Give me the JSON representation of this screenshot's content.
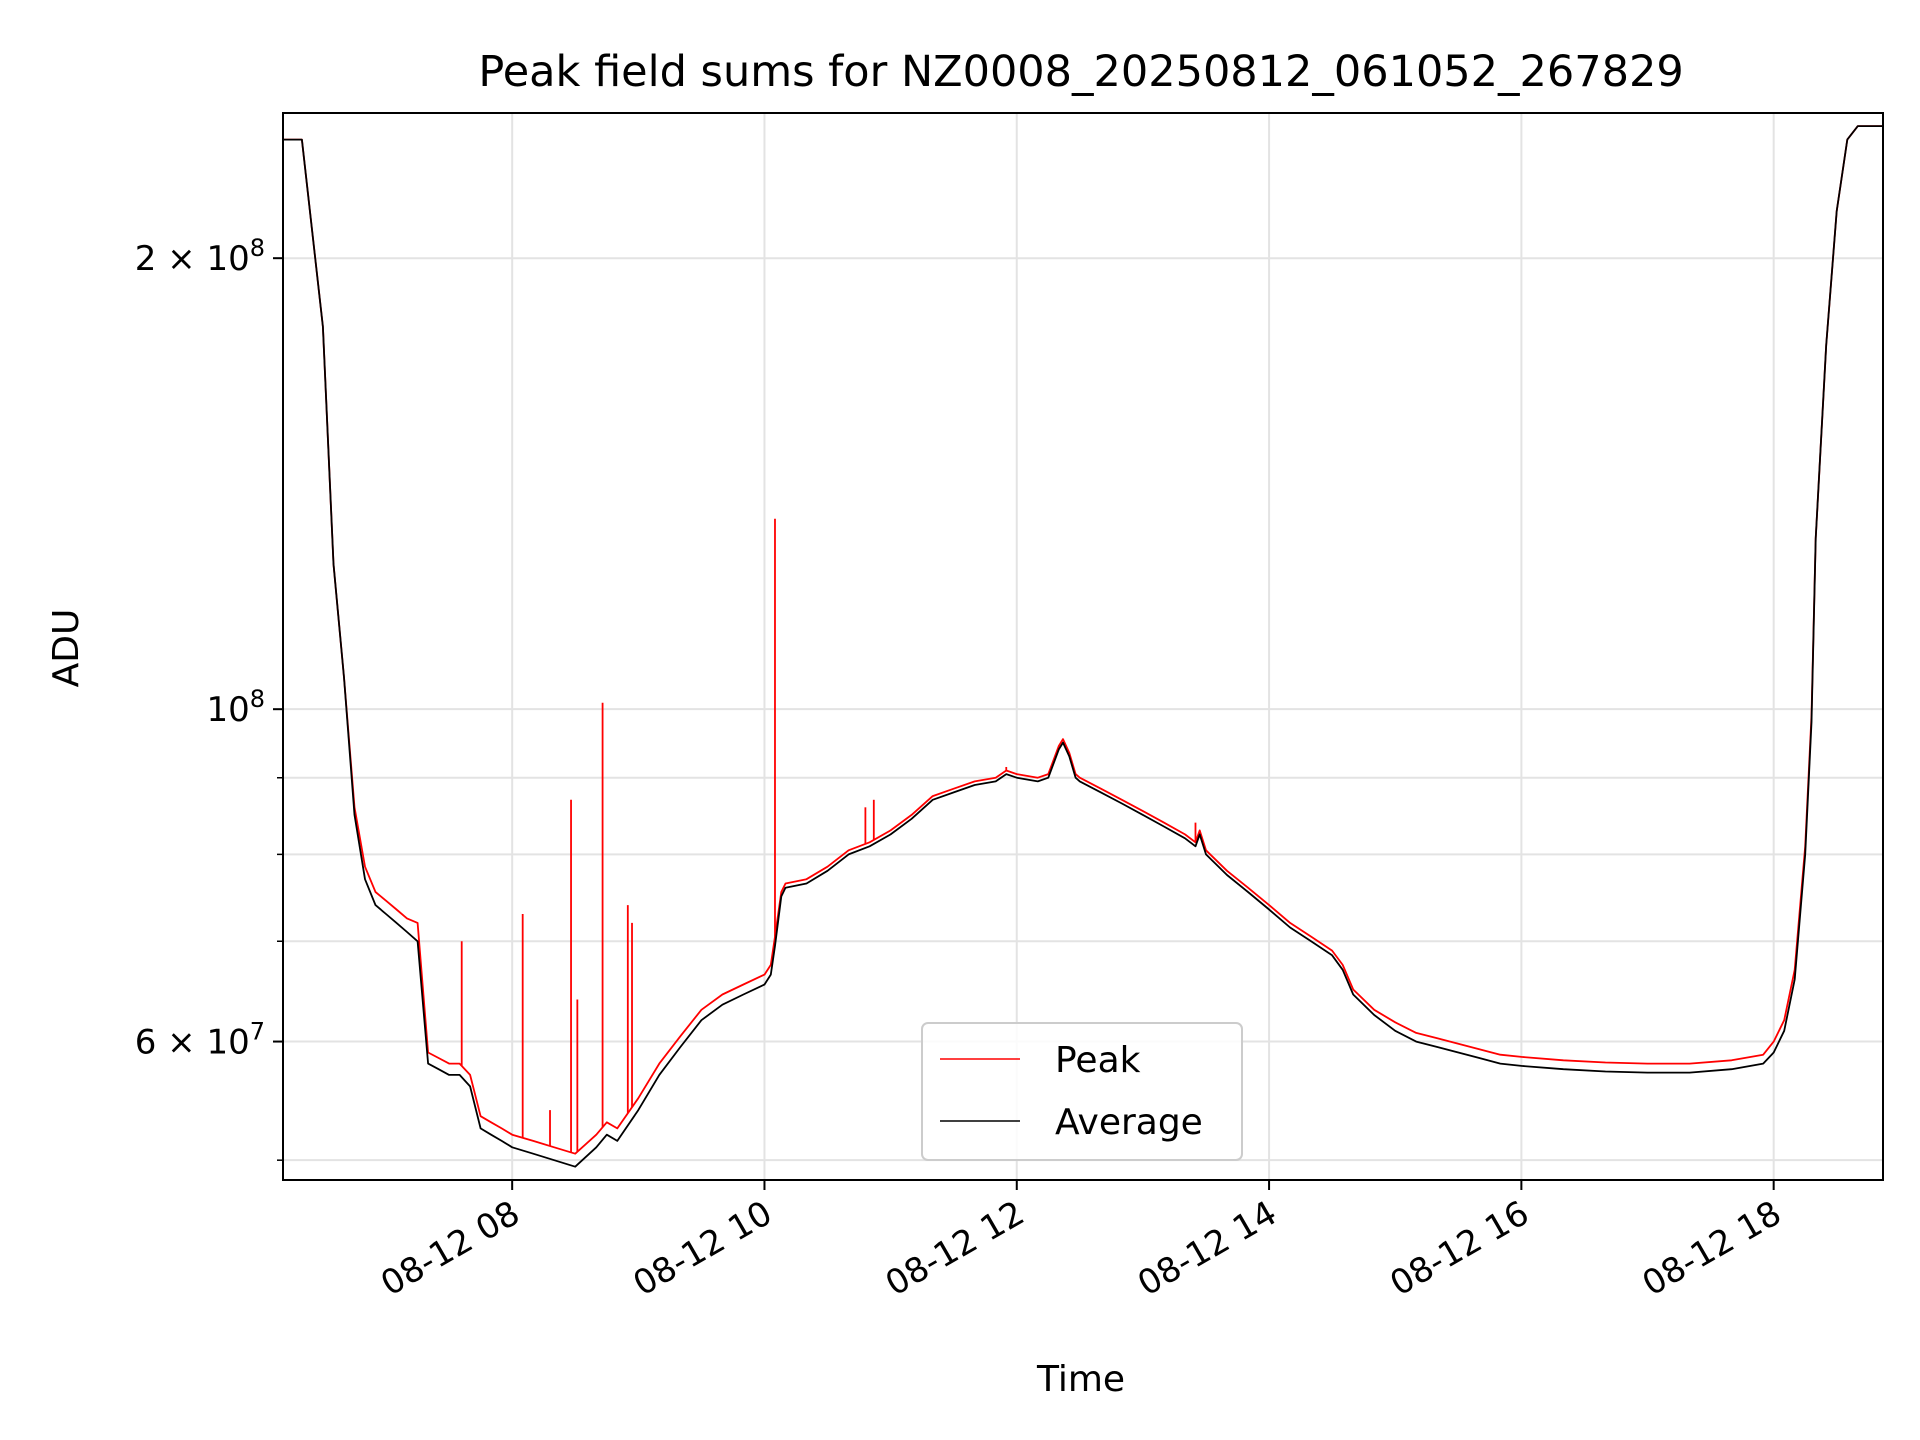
{
  "chart_data": {
    "type": "line",
    "title": "Peak field sums for NZ0008_20250812_061052_267829",
    "xlabel": "Time",
    "ylabel": "ADU",
    "y_scale": "log",
    "ylim": [
      48500000,
      250000000
    ],
    "xlim": [
      "08-12 06:11",
      "08-12 18:52"
    ],
    "grid": true,
    "legend_position": "bottom-center",
    "x_ticks": [
      {
        "t": "08:00",
        "label": "08-12 08"
      },
      {
        "t": "10:00",
        "label": "08-12 10"
      },
      {
        "t": "12:00",
        "label": "08-12 12"
      },
      {
        "t": "14:00",
        "label": "08-12 14"
      },
      {
        "t": "16:00",
        "label": "08-12 16"
      },
      {
        "t": "18:00",
        "label": "08-12 18"
      }
    ],
    "y_major_ticks": [
      {
        "value": 60000000,
        "label": "6 × 10⁷",
        "coef": "6",
        "exp": "7"
      },
      {
        "value": 100000000,
        "label": "10⁸",
        "coef": "",
        "exp": "8"
      },
      {
        "value": 200000000,
        "label": "2 × 10⁸",
        "coef": "2",
        "exp": "8"
      }
    ],
    "y_minor_ticks": [
      50000000,
      70000000,
      80000000,
      90000000
    ],
    "series": [
      {
        "name": "Average",
        "color": "#000000",
        "x": [
          "06:11",
          "06:20",
          "06:30",
          "06:35",
          "06:40",
          "06:45",
          "06:50",
          "06:55",
          "07:00",
          "07:05",
          "07:10",
          "07:15",
          "07:20",
          "07:25",
          "07:30",
          "07:35",
          "07:40",
          "07:45",
          "07:50",
          "07:55",
          "08:00",
          "08:10",
          "08:20",
          "08:30",
          "08:40",
          "08:45",
          "08:50",
          "09:00",
          "09:10",
          "09:20",
          "09:30",
          "09:40",
          "09:50",
          "10:00",
          "10:03",
          "10:05",
          "10:08",
          "10:10",
          "10:20",
          "10:30",
          "10:40",
          "10:50",
          "11:00",
          "11:10",
          "11:20",
          "11:30",
          "11:40",
          "11:50",
          "11:55",
          "12:00",
          "12:10",
          "12:15",
          "12:20",
          "12:22",
          "12:25",
          "12:28",
          "12:30",
          "12:40",
          "12:50",
          "13:00",
          "13:10",
          "13:20",
          "13:25",
          "13:27",
          "13:30",
          "13:40",
          "13:50",
          "14:00",
          "14:10",
          "14:20",
          "14:30",
          "14:35",
          "14:40",
          "14:50",
          "15:00",
          "15:10",
          "15:20",
          "15:30",
          "15:40",
          "15:50",
          "16:00",
          "16:20",
          "16:40",
          "17:00",
          "17:20",
          "17:40",
          "17:55",
          "18:00",
          "18:05",
          "18:10",
          "18:15",
          "18:18",
          "18:20",
          "18:25",
          "18:30",
          "18:35",
          "18:40",
          "18:45",
          "18:52"
        ],
        "values": [
          240000000,
          240000000,
          180000000,
          125000000,
          105000000,
          85000000,
          77000000,
          74000000,
          73000000,
          72000000,
          71000000,
          70000000,
          58000000,
          57500000,
          57000000,
          57000000,
          56000000,
          52500000,
          52000000,
          51500000,
          51000000,
          50500000,
          50000000,
          49500000,
          51000000,
          52000000,
          51500000,
          54000000,
          57000000,
          59500000,
          62000000,
          63500000,
          64500000,
          65500000,
          66500000,
          69500000,
          75000000,
          76000000,
          76500000,
          78000000,
          80000000,
          81000000,
          82500000,
          84500000,
          87000000,
          88000000,
          89000000,
          89500000,
          90500000,
          90000000,
          89500000,
          90000000,
          94000000,
          95000000,
          93000000,
          90000000,
          89500000,
          88000000,
          86500000,
          85000000,
          83500000,
          82000000,
          81000000,
          82500000,
          80000000,
          77500000,
          75500000,
          73500000,
          71500000,
          70000000,
          68500000,
          67000000,
          64500000,
          62500000,
          61000000,
          60000000,
          59500000,
          59000000,
          58500000,
          58000000,
          57800000,
          57500000,
          57300000,
          57200000,
          57200000,
          57500000,
          58000000,
          59000000,
          61000000,
          66000000,
          80000000,
          98000000,
          130000000,
          175000000,
          215000000,
          240000000,
          245000000,
          245000000,
          245000000
        ]
      },
      {
        "name": "Peak",
        "color": "#ff0000",
        "x": [
          "06:11",
          "06:20",
          "06:30",
          "06:35",
          "06:40",
          "06:45",
          "06:50",
          "06:55",
          "07:00",
          "07:05",
          "07:10",
          "07:15",
          "07:20",
          "07:25",
          "07:30",
          "07:35",
          "07:40",
          "07:45",
          "07:50",
          "07:55",
          "08:00",
          "08:10",
          "08:20",
          "08:30",
          "08:40",
          "08:45",
          "08:50",
          "09:00",
          "09:10",
          "09:20",
          "09:30",
          "09:40",
          "09:50",
          "10:00",
          "10:03",
          "10:05",
          "10:08",
          "10:10",
          "10:20",
          "10:30",
          "10:40",
          "10:50",
          "11:00",
          "11:10",
          "11:20",
          "11:30",
          "11:40",
          "11:50",
          "11:55",
          "12:00",
          "12:10",
          "12:15",
          "12:20",
          "12:22",
          "12:25",
          "12:28",
          "12:30",
          "12:40",
          "12:50",
          "13:00",
          "13:10",
          "13:20",
          "13:25",
          "13:27",
          "13:30",
          "13:40",
          "13:50",
          "14:00",
          "14:10",
          "14:20",
          "14:30",
          "14:35",
          "14:40",
          "14:50",
          "15:00",
          "15:10",
          "15:20",
          "15:30",
          "15:40",
          "15:50",
          "16:00",
          "16:20",
          "16:40",
          "17:00",
          "17:20",
          "17:40",
          "17:55",
          "18:00",
          "18:05",
          "18:10",
          "18:15",
          "18:18",
          "18:20",
          "18:25",
          "18:30",
          "18:35",
          "18:40",
          "18:45",
          "18:52"
        ],
        "values": [
          240000000,
          240000000,
          180000000,
          125000000,
          105000000,
          86000000,
          78500000,
          75500000,
          74500000,
          73500000,
          72500000,
          72000000,
          59000000,
          58500000,
          58000000,
          58000000,
          57000000,
          53500000,
          53000000,
          52500000,
          52000000,
          51500000,
          51000000,
          50500000,
          52000000,
          53000000,
          52500000,
          55000000,
          58000000,
          60500000,
          63000000,
          64500000,
          65500000,
          66500000,
          67500000,
          70500000,
          75500000,
          76500000,
          77000000,
          78500000,
          80500000,
          81500000,
          83000000,
          85000000,
          87500000,
          88500000,
          89500000,
          90000000,
          91000000,
          90500000,
          90000000,
          90500000,
          94500000,
          95500000,
          93500000,
          90500000,
          90000000,
          88500000,
          87000000,
          85500000,
          84000000,
          82500000,
          81500000,
          83000000,
          80500000,
          78000000,
          76000000,
          74000000,
          72000000,
          70500000,
          69000000,
          67500000,
          65000000,
          63000000,
          61800000,
          60800000,
          60300000,
          59800000,
          59300000,
          58800000,
          58600000,
          58300000,
          58100000,
          58000000,
          58000000,
          58300000,
          58800000,
          60000000,
          62000000,
          67000000,
          81000000,
          99000000,
          130000000,
          175000000,
          215000000,
          240000000,
          245000000,
          245000000,
          245000000
        ],
        "spikes": [
          {
            "t": "07:36",
            "value": 70000000
          },
          {
            "t": "08:05",
            "value": 73000000
          },
          {
            "t": "08:18",
            "value": 54000000
          },
          {
            "t": "08:28",
            "value": 87000000
          },
          {
            "t": "08:31",
            "value": 64000000
          },
          {
            "t": "08:43",
            "value": 101000000
          },
          {
            "t": "08:55",
            "value": 74000000
          },
          {
            "t": "08:57",
            "value": 72000000
          },
          {
            "t": "10:05",
            "value": 134000000
          },
          {
            "t": "10:48",
            "value": 86000000
          },
          {
            "t": "10:52",
            "value": 87000000
          },
          {
            "t": "11:55",
            "value": 91500000
          },
          {
            "t": "13:25",
            "value": 84000000
          }
        ]
      }
    ]
  }
}
